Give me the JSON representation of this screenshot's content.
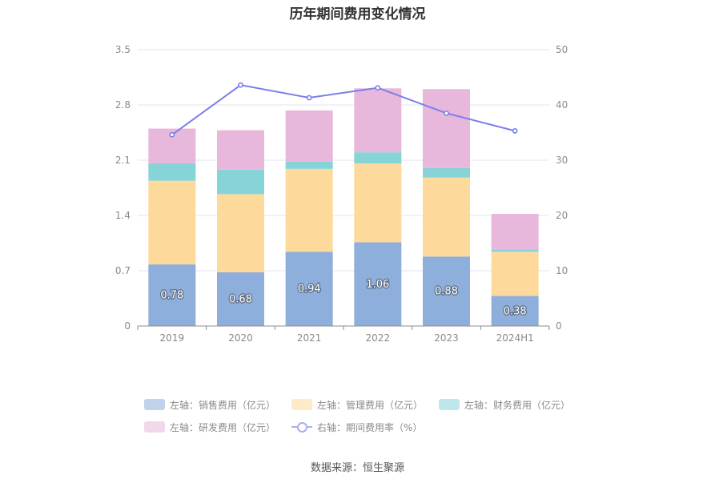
{
  "chart_data": {
    "type": "bar",
    "title": "历年期间费用变化情况",
    "categories": [
      "2019",
      "2020",
      "2021",
      "2022",
      "2023",
      "2024H1"
    ],
    "series": [
      {
        "name": "左轴：销售费用（亿元）",
        "color": "#8eaedb",
        "values": [
          0.78,
          0.68,
          0.94,
          1.06,
          0.88,
          0.38
        ]
      },
      {
        "name": "左轴：管理费用（亿元）",
        "color": "#fdd99b",
        "values": [
          1.06,
          0.99,
          1.05,
          1.0,
          1.0,
          0.56
        ]
      },
      {
        "name": "左轴：财务费用（亿元）",
        "color": "#86d4d8",
        "values": [
          0.22,
          0.31,
          0.09,
          0.14,
          0.12,
          0.03
        ]
      },
      {
        "name": "左轴：研发费用（亿元）",
        "color": "#e7b8db",
        "values": [
          0.44,
          0.5,
          0.65,
          0.81,
          1.0,
          0.45
        ]
      },
      {
        "name": "右轴：期间费用率（%）",
        "color": "#7b7fe8",
        "type": "line",
        "values": [
          34.6,
          43.6,
          41.3,
          43.1,
          38.5,
          35.3
        ]
      }
    ],
    "data_labels": [
      "0.78",
      "0.68",
      "0.94",
      "1.06",
      "0.88",
      "0.38"
    ],
    "y_left": {
      "ticks": [
        "0",
        "0.7",
        "1.4",
        "2.1",
        "2.8",
        "3.5"
      ],
      "lim": [
        0,
        3.5
      ]
    },
    "y_right": {
      "ticks": [
        "0",
        "10",
        "20",
        "30",
        "40",
        "50"
      ],
      "lim": [
        0,
        50
      ]
    },
    "grid": true,
    "legend_position": "bottom"
  },
  "source": "数据来源：恒生聚源"
}
